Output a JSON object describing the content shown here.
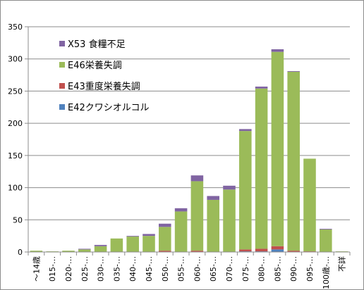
{
  "chart_data": {
    "type": "bar",
    "stacked": true,
    "title": "",
    "xlabel": "",
    "ylabel": "",
    "ylim": [
      0,
      350
    ],
    "yticks": [
      0,
      50,
      100,
      150,
      200,
      250,
      300,
      350
    ],
    "grid": "horizontal",
    "legend_position": "top-left-inside",
    "categories": [
      "～14歳",
      "015-…",
      "020-…",
      "025-…",
      "030-…",
      "035-…",
      "040-…",
      "045-…",
      "050-…",
      "055-…",
      "060-…",
      "065-…",
      "070-…",
      "075-…",
      "080-…",
      "085-…",
      "090-…",
      "095-…",
      "100歳-…",
      "不詳"
    ],
    "series": [
      {
        "name": "E42クワシオルコル",
        "color": "#4f81bd",
        "values": [
          0,
          0,
          0,
          0,
          0,
          0,
          0,
          0,
          0,
          0,
          0,
          0,
          0,
          1,
          1,
          4,
          0,
          0,
          0,
          0
        ]
      },
      {
        "name": "E43重度栄養失調",
        "color": "#c0504d",
        "values": [
          0,
          0,
          0,
          0,
          0,
          0,
          0,
          0,
          2,
          0,
          2,
          0,
          0,
          3,
          4,
          5,
          2,
          1,
          0,
          0
        ]
      },
      {
        "name": "E46栄養失調",
        "color": "#9bbb59",
        "values": [
          2,
          1,
          2,
          4,
          9,
          21,
          24,
          25,
          37,
          63,
          108,
          81,
          97,
          184,
          249,
          302,
          278,
          144,
          35,
          1
        ]
      },
      {
        "name": "X53 食糧不足",
        "color": "#8064a2",
        "values": [
          0,
          0,
          0,
          1,
          2,
          0,
          1,
          3,
          5,
          5,
          9,
          6,
          6,
          3,
          3,
          4,
          1,
          0,
          1,
          0
        ]
      }
    ]
  }
}
